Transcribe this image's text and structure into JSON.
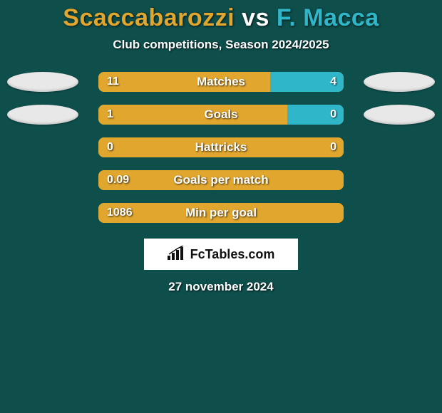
{
  "background_color": "#0e4e4b",
  "title": {
    "player1": "Scaccabarozzi",
    "vs": " vs ",
    "player2": "F. Macca",
    "color_p1": "#e0a62e",
    "color_vs": "#ffffff",
    "color_p2": "#2fb7c9",
    "fontsize": 34
  },
  "subtitle": "Club competitions, Season 2024/2025",
  "subtitle_fontsize": 17,
  "bar": {
    "left_color": "#e0a62e",
    "right_color": "#2fb7c9",
    "track_width": 344,
    "track_height": 28,
    "border_radius": 8,
    "label_color": "#ffffff",
    "label_fontsize": 17,
    "value_fontsize": 16
  },
  "rows": [
    {
      "label": "Matches",
      "left_val": "11",
      "right_val": "4",
      "left_pct": 70,
      "right_pct": 30,
      "show_ovals": true
    },
    {
      "label": "Goals",
      "left_val": "1",
      "right_val": "0",
      "left_pct": 77,
      "right_pct": 23,
      "show_ovals": true
    },
    {
      "label": "Hattricks",
      "left_val": "0",
      "right_val": "0",
      "left_pct": 100,
      "right_pct": 0,
      "show_ovals": false
    },
    {
      "label": "Goals per match",
      "left_val": "0.09",
      "right_val": "",
      "left_pct": 100,
      "right_pct": 0,
      "show_ovals": false
    },
    {
      "label": "Min per goal",
      "left_val": "1086",
      "right_val": "",
      "left_pct": 100,
      "right_pct": 0,
      "show_ovals": false
    }
  ],
  "oval": {
    "width": 100,
    "height": 28,
    "color": "#e8e8e8"
  },
  "logo": {
    "text": "FcTables.com",
    "box_bg": "#ffffff",
    "text_color": "#111111",
    "fontsize": 18
  },
  "date": "27 november 2024",
  "date_fontsize": 17
}
